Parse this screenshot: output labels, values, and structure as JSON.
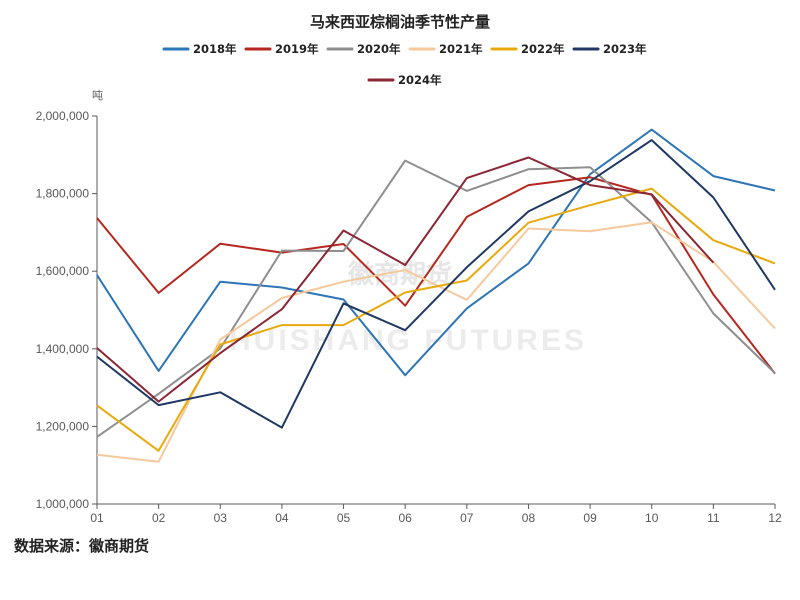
{
  "source": "数据来源：徽商期货",
  "watermark": {
    "cn": "徽商期货",
    "en": "HUISHANG FUTURES"
  },
  "chart_data": {
    "type": "line",
    "title": "马来西亚棕榈油季节性产量",
    "ylabel": "吨",
    "xlabel": "",
    "categories": [
      "01",
      "02",
      "03",
      "04",
      "05",
      "06",
      "07",
      "08",
      "09",
      "10",
      "11",
      "12"
    ],
    "ylim": [
      1000000,
      2000000
    ],
    "yticks": [
      1000000,
      1200000,
      1400000,
      1600000,
      1800000,
      2000000
    ],
    "ytick_labels": [
      "1,000,000",
      "1,200,000",
      "1,400,000",
      "1,600,000",
      "1,800,000",
      "2,000,000"
    ],
    "grid": false,
    "legend_position": "top",
    "series": [
      {
        "name": "2018年",
        "color": "#2e75b6",
        "values": [
          1590000,
          1343000,
          1573000,
          1558000,
          1527000,
          1332000,
          1504000,
          1620000,
          1850000,
          1965000,
          1845000,
          1808000
        ]
      },
      {
        "name": "2019年",
        "color": "#b5271f",
        "values": [
          1737000,
          1544000,
          1671000,
          1648000,
          1670000,
          1511000,
          1740000,
          1822000,
          1842000,
          1797000,
          1540000,
          1336000
        ]
      },
      {
        "name": "2020年",
        "color": "#8e8e8e",
        "values": [
          1173000,
          1284000,
          1401000,
          1653000,
          1652000,
          1885000,
          1807000,
          1863000,
          1868000,
          1726000,
          1491000,
          1337000
        ]
      },
      {
        "name": "2021年",
        "color": "#f5c99c",
        "values": [
          1127000,
          1109000,
          1424000,
          1531000,
          1573000,
          1603000,
          1526000,
          1710000,
          1703000,
          1726000,
          1624000,
          1452000
        ]
      },
      {
        "name": "2022年",
        "color": "#e8a90c",
        "values": [
          1254000,
          1137000,
          1411000,
          1461000,
          1461000,
          1545000,
          1576000,
          1725000,
          1770000,
          1813000,
          1680000,
          1620000
        ]
      },
      {
        "name": "2023年",
        "color": "#1f3864",
        "values": [
          1380000,
          1255000,
          1288000,
          1197000,
          1517000,
          1448000,
          1610000,
          1754000,
          1832000,
          1938000,
          1790000,
          1552000
        ]
      },
      {
        "name": "2024年",
        "color": "#8b2635",
        "values": [
          1402000,
          1264000,
          1389000,
          1502000,
          1705000,
          1616000,
          1840000,
          1893000,
          1822000,
          1798000,
          1622000,
          null
        ]
      }
    ]
  }
}
